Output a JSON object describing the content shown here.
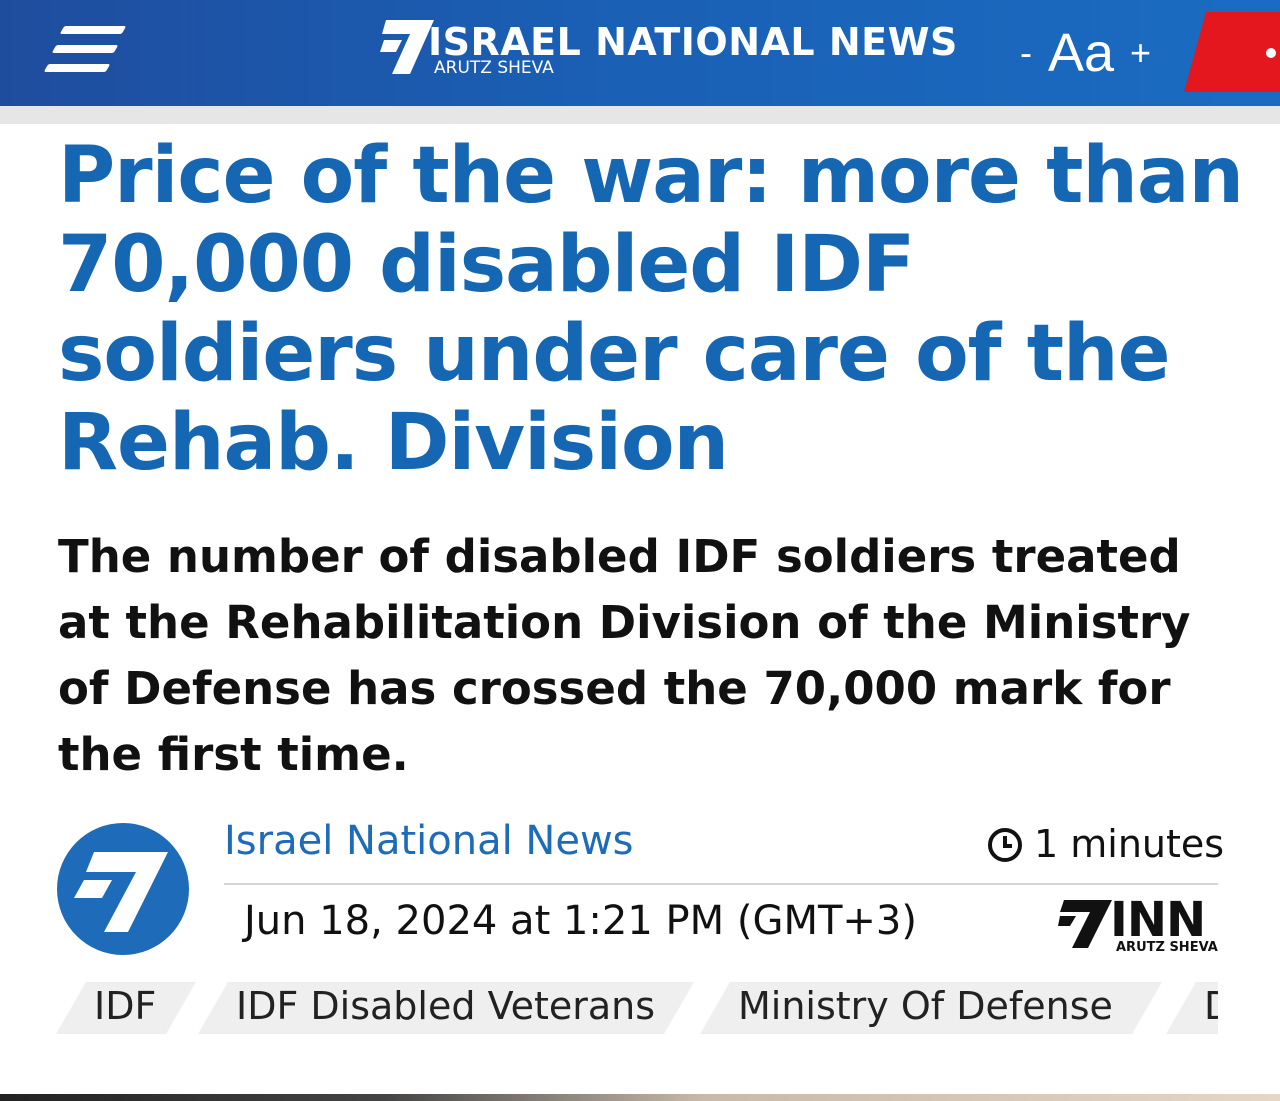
{
  "header": {
    "brand_name": "ISRAEL NATIONAL NEWS",
    "brand_sub": "ARUTZ SHEVA",
    "text_size_minus": "-",
    "text_size_label": "Aa",
    "text_size_plus": "+",
    "colors": {
      "bar": "#1a5fb4",
      "accent": "#e4161e"
    }
  },
  "article": {
    "headline": "Price of the war: more than 70,000 disabled IDF soldiers under care of the Rehab. Division",
    "subheadline": "The number of disabled IDF soldiers treated at the Rehabilitation Division of the Ministry of Defense has crossed the 70,000 mark for the first time.",
    "source": "Israel National News",
    "read_time": "1 minutes",
    "date": "Jun 18, 2024 at 1:21 PM (GMT+3)",
    "publisher_logo_text": "INN",
    "publisher_logo_sub": "ARUTZ SHEVA",
    "tags": [
      "IDF",
      "IDF Disabled Veterans",
      "Ministry Of Defense",
      "D"
    ]
  },
  "icons": {
    "menu": "hamburger-menu-icon",
    "clock": "clock-icon",
    "logo": "arutz-sheva-7-logo"
  }
}
